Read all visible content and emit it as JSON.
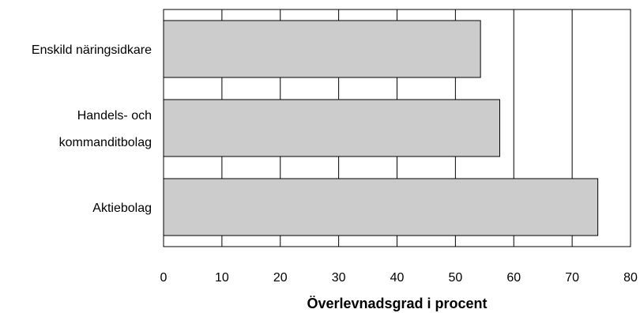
{
  "chart_data": {
    "type": "bar",
    "orientation": "horizontal",
    "categories": [
      [
        "Enskild näringsidkare"
      ],
      [
        "Handels- och",
        "kommanditbolag"
      ],
      [
        "Aktiebolag"
      ]
    ],
    "values": [
      54.3,
      57.6,
      74.4
    ],
    "xlabel": "Överlevnadsgrad i procent",
    "xlim": [
      0,
      80
    ],
    "ticks": [
      0,
      10,
      20,
      30,
      40,
      50,
      60,
      70,
      80
    ],
    "grid": "vertical",
    "bar_color": "#cccccc",
    "bar_edge_color": "#000000"
  }
}
